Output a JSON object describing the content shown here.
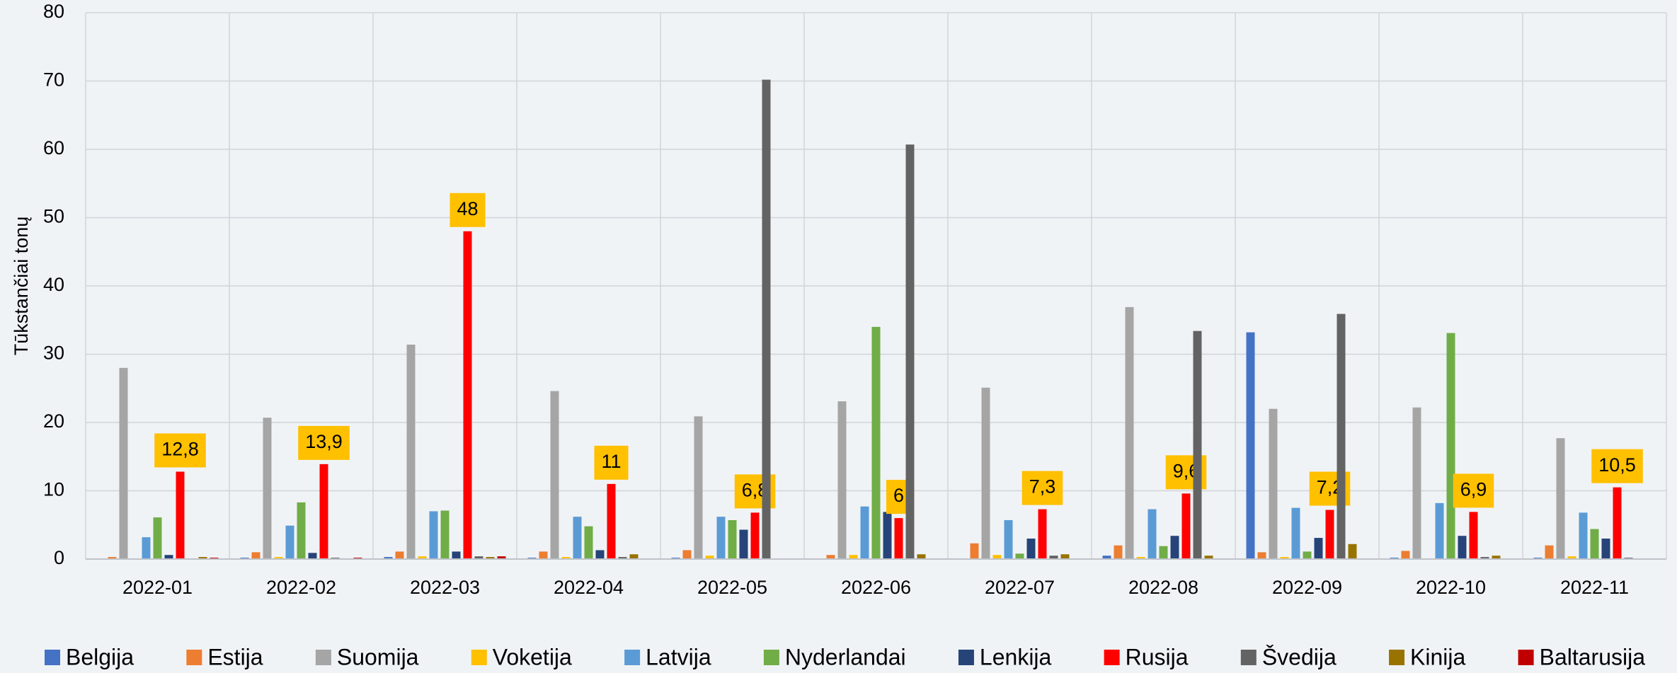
{
  "chart_data": {
    "type": "bar",
    "y_label": "Tūkstančiai tonų",
    "categories": [
      "2022-01",
      "2022-02",
      "2022-03",
      "2022-04",
      "2022-05",
      "2022-06",
      "2022-07",
      "2022-08",
      "2022-09",
      "2022-10",
      "2022-11"
    ],
    "ylim": [
      0,
      80
    ],
    "yticks": [
      0,
      10,
      20,
      30,
      40,
      50,
      60,
      70,
      80
    ],
    "grid": true,
    "legend": "bottom",
    "series": [
      {
        "name": "Belgija",
        "color": "#4472c4",
        "values": [
          0.1,
          0.2,
          0.3,
          0.2,
          0.2,
          0.1,
          0,
          0.5,
          33.2,
          0.2,
          0.2
        ]
      },
      {
        "name": "Estija",
        "color": "#ed7d31",
        "values": [
          0.3,
          1.0,
          1.1,
          1.1,
          1.3,
          0.6,
          2.3,
          2.0,
          1.0,
          1.2,
          2.0
        ]
      },
      {
        "name": "Suomija",
        "color": "#a5a5a5",
        "values": [
          28,
          20.7,
          31.4,
          24.6,
          20.9,
          23.1,
          25.1,
          36.9,
          22.0,
          22.2,
          17.7
        ]
      },
      {
        "name": "Voketija",
        "color": "#ffc000",
        "values": [
          0.1,
          0.3,
          0.4,
          0.3,
          0.5,
          0.6,
          0.6,
          0.3,
          0.3,
          0.1,
          0.4
        ]
      },
      {
        "name": "Latvija",
        "color": "#5b9bd5",
        "values": [
          3.2,
          4.9,
          7.0,
          6.2,
          6.2,
          7.7,
          5.7,
          7.3,
          7.5,
          8.2,
          6.8
        ]
      },
      {
        "name": "Nyderlandai",
        "color": "#70ad47",
        "values": [
          6.1,
          8.3,
          7.1,
          4.8,
          5.7,
          34.0,
          0.8,
          1.9,
          1.1,
          33.1,
          4.4
        ]
      },
      {
        "name": "Lenkija",
        "color": "#264478",
        "values": [
          0.6,
          0.9,
          1.1,
          1.3,
          4.3,
          6.9,
          3.0,
          3.4,
          3.1,
          3.4,
          3.0
        ]
      },
      {
        "name": "Rusija",
        "color": "#ff0000",
        "values": [
          12.8,
          13.9,
          48,
          11,
          6.8,
          6,
          7.3,
          9.6,
          7.2,
          6.9,
          10.5
        ],
        "value_labels": [
          "12,8",
          "13,9",
          "48",
          "11",
          "6,8",
          "6",
          "7,3",
          "9,6",
          "7,2",
          "6,9",
          "10,5"
        ]
      },
      {
        "name": "Švedija",
        "color": "#636363",
        "values": [
          0.1,
          0.2,
          0.4,
          0.3,
          70.2,
          60.7,
          0.5,
          33.4,
          35.9,
          0.3,
          0.2
        ]
      },
      {
        "name": "Kinija",
        "color": "#997300",
        "values": [
          0.3,
          0.1,
          0.3,
          0.7,
          0.1,
          0.7,
          0.7,
          0.5,
          2.2,
          0.5,
          0
        ]
      },
      {
        "name": "Baltarusija",
        "color": "#c00000",
        "values": [
          0.2,
          0.2,
          0.4,
          0,
          0,
          0,
          0,
          0,
          0,
          0,
          0
        ]
      }
    ]
  }
}
